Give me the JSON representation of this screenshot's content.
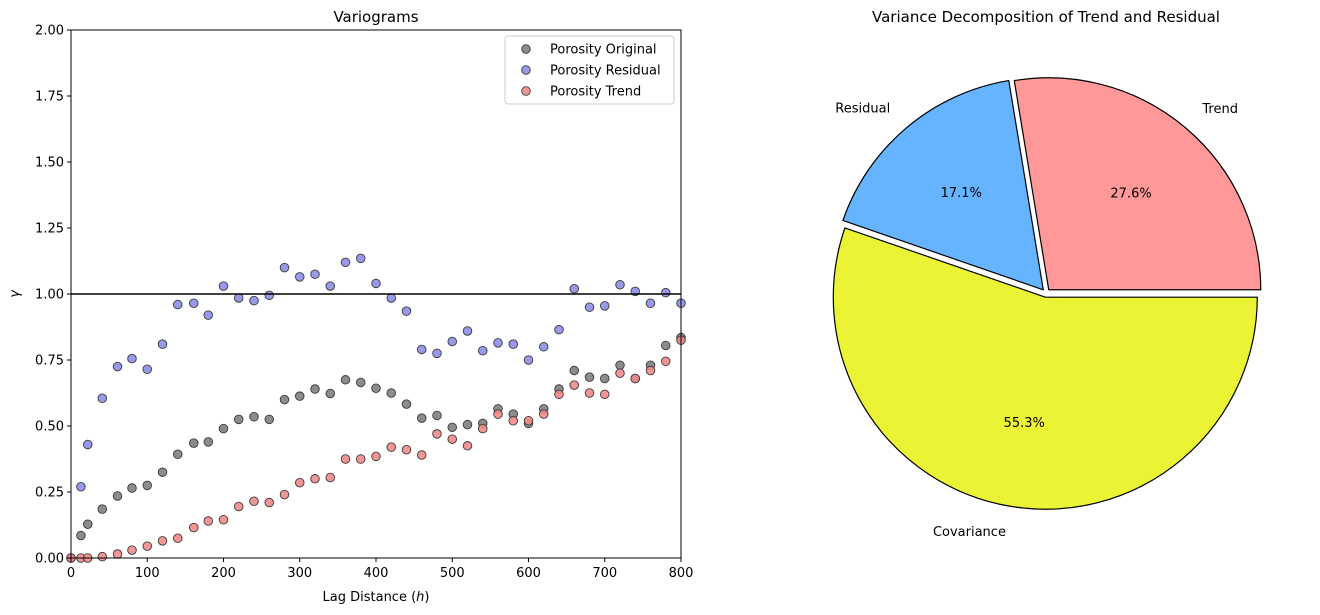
{
  "chart_data": [
    {
      "type": "scatter",
      "title": "Variograms",
      "xlabel": "Lag Distance (h)",
      "xlabel_parts": {
        "prefix": "Lag Distance (",
        "var": "h",
        "suffix": ")"
      },
      "ylabel": "γ",
      "xlim": [
        0,
        800
      ],
      "ylim": [
        0,
        2.0
      ],
      "xticks": [
        "0",
        "100",
        "200",
        "300",
        "400",
        "500",
        "600",
        "700",
        "800"
      ],
      "yticks": [
        "0.00",
        "0.25",
        "0.50",
        "0.75",
        "1.00",
        "1.25",
        "1.50",
        "1.75",
        "2.00"
      ],
      "xtick_values": [
        0,
        100,
        200,
        300,
        400,
        500,
        600,
        700,
        800
      ],
      "ytick_values": [
        0,
        0.25,
        0.5,
        0.75,
        1.0,
        1.25,
        1.5,
        1.75,
        2.0
      ],
      "grid": false,
      "legend_position": "top-right",
      "reference_line": {
        "y": 1.0,
        "color": "#000000"
      },
      "x": [
        0,
        13,
        22,
        41,
        61,
        80,
        100,
        120,
        140,
        161,
        180,
        200,
        220,
        240,
        260,
        280,
        300,
        320,
        340,
        360,
        380,
        400,
        420,
        440,
        460,
        480,
        500,
        520,
        540,
        560,
        580,
        600,
        620,
        640,
        660,
        680,
        700,
        720,
        740,
        760,
        780,
        800
      ],
      "series": [
        {
          "name": "Porosity Original",
          "color": "#808080",
          "values": [
            0.0,
            0.085,
            0.128,
            0.185,
            0.235,
            0.265,
            0.275,
            0.325,
            0.393,
            0.435,
            0.44,
            0.49,
            0.525,
            0.535,
            0.525,
            0.6,
            0.613,
            0.64,
            0.623,
            0.675,
            0.665,
            0.643,
            0.625,
            0.583,
            0.53,
            0.54,
            0.495,
            0.505,
            0.51,
            0.565,
            0.545,
            0.51,
            0.565,
            0.64,
            0.71,
            0.685,
            0.68,
            0.73,
            0.68,
            0.73,
            0.805,
            0.835
          ]
        },
        {
          "name": "Porosity Residual",
          "color": "#8e8ee8",
          "values": [
            0.0,
            0.27,
            0.43,
            0.605,
            0.725,
            0.755,
            0.715,
            0.81,
            0.96,
            0.965,
            0.92,
            1.03,
            0.985,
            0.975,
            0.995,
            1.1,
            1.065,
            1.075,
            1.03,
            1.12,
            1.135,
            1.04,
            0.985,
            0.935,
            0.79,
            0.775,
            0.82,
            0.86,
            0.785,
            0.815,
            0.81,
            0.75,
            0.8,
            0.865,
            1.02,
            0.95,
            0.955,
            1.035,
            1.01,
            0.965,
            1.005,
            0.965
          ]
        },
        {
          "name": "Porosity Trend",
          "color": "#ef8a8a",
          "values": [
            0.0,
            0.0,
            0.0,
            0.005,
            0.015,
            0.03,
            0.045,
            0.065,
            0.075,
            0.115,
            0.14,
            0.145,
            0.195,
            0.215,
            0.21,
            0.24,
            0.285,
            0.3,
            0.305,
            0.375,
            0.375,
            0.385,
            0.42,
            0.41,
            0.39,
            0.47,
            0.45,
            0.425,
            0.49,
            0.545,
            0.52,
            0.52,
            0.545,
            0.62,
            0.655,
            0.625,
            0.62,
            0.7,
            0.68,
            0.71,
            0.745,
            0.825
          ]
        }
      ]
    },
    {
      "type": "pie",
      "title": "Variance Decomposition of Trend and Residual",
      "labels": [
        "Trend",
        "Residual",
        "Covariance"
      ],
      "values": [
        27.6,
        17.1,
        55.3
      ],
      "value_labels": [
        "27.6%",
        "17.1%",
        "55.3%"
      ],
      "colors": [
        "#ff9999",
        "#66b3ff",
        "#ebf335"
      ],
      "explode": [
        0.02,
        0.02,
        0.02
      ],
      "edgecolor": "#000000"
    }
  ]
}
